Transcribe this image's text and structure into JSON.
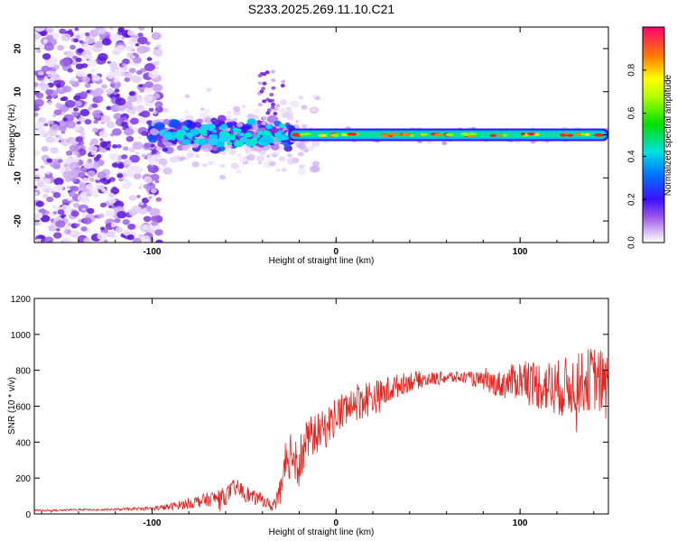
{
  "title": "S233.2025.269.11.10.C21",
  "chart_data": [
    {
      "type": "heatmap",
      "title": "S233.2025.269.11.10.C21",
      "xlabel": "Height of straight line (km)",
      "ylabel": "Frequency (Hz)",
      "xlim": [
        -164,
        148
      ],
      "ylim": [
        -25,
        25
      ],
      "xticks": [
        -100,
        0,
        100
      ],
      "yticks": [
        -20,
        -10,
        0,
        10,
        20
      ],
      "ridge": {
        "frequency_hz": 0,
        "start_km": -26,
        "end_km": 148,
        "description": "strong narrow band near 0 Hz"
      },
      "noise_region": {
        "from_km": -164,
        "to_km": -100
      },
      "colorbar": {
        "label": "Normalized spectral amplitude",
        "range": [
          0,
          1
        ],
        "ticks": [
          0.0,
          0.2,
          0.4,
          0.6,
          0.8
        ],
        "tick_labels": [
          "0.0",
          "0.2",
          "0.4",
          "0.6",
          "0.8"
        ]
      }
    },
    {
      "type": "line",
      "xlabel": "Height of straight line (km)",
      "ylabel": "SNR (10 * v/v)",
      "xlim": [
        -164,
        148
      ],
      "ylim": [
        0,
        1200
      ],
      "xticks": [
        -100,
        0,
        100
      ],
      "yticks": [
        0,
        200,
        400,
        600,
        800,
        1000,
        1200
      ],
      "series": [
        {
          "name": "SNR",
          "color": "#e8231f",
          "x": [
            -164,
            -150,
            -140,
            -130,
            -120,
            -110,
            -100,
            -90,
            -80,
            -70,
            -60,
            -55,
            -50,
            -45,
            -40,
            -35,
            -30,
            -25,
            -20,
            -15,
            -10,
            -5,
            0,
            5,
            10,
            15,
            20,
            25,
            30,
            35,
            40,
            50,
            60,
            70,
            80,
            90,
            100,
            110,
            120,
            130,
            140,
            148
          ],
          "values": [
            20,
            20,
            25,
            22,
            25,
            28,
            30,
            40,
            60,
            80,
            100,
            150,
            120,
            90,
            80,
            40,
            120,
            350,
            300,
            420,
            450,
            480,
            550,
            580,
            620,
            640,
            650,
            660,
            700,
            720,
            740,
            750,
            760,
            760,
            740,
            720,
            750,
            720,
            700,
            720,
            760,
            700
          ],
          "amplitude": [
            5,
            5,
            5,
            5,
            6,
            8,
            12,
            20,
            30,
            40,
            50,
            50,
            50,
            40,
            35,
            30,
            80,
            150,
            150,
            120,
            110,
            110,
            110,
            110,
            110,
            110,
            100,
            90,
            80,
            60,
            60,
            40,
            35,
            35,
            50,
            80,
            110,
            140,
            160,
            170,
            180,
            200
          ]
        }
      ]
    }
  ]
}
